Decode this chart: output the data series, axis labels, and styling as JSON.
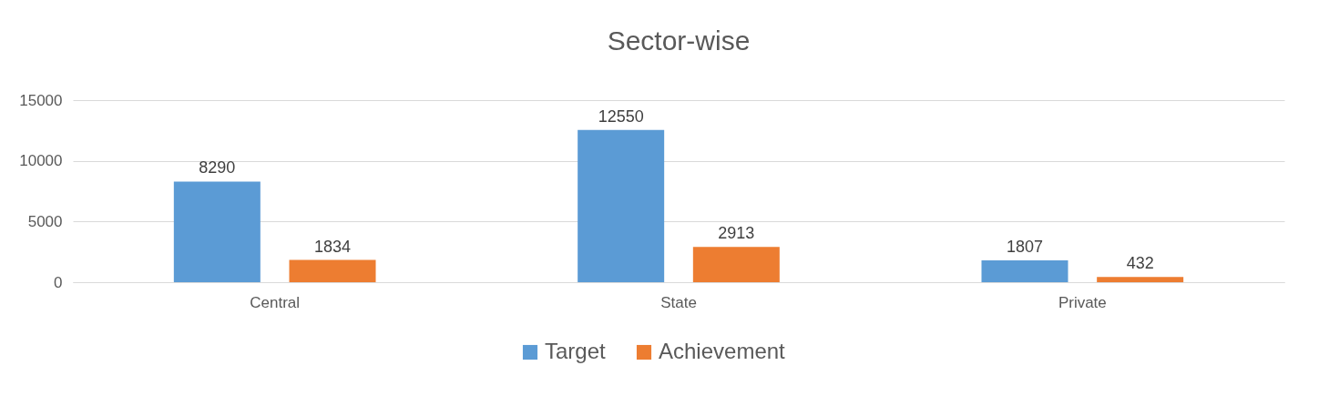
{
  "chart_data": {
    "type": "bar",
    "title": "Sector-wise",
    "categories": [
      "Central",
      "State",
      "Private"
    ],
    "series": [
      {
        "name": "Target",
        "color": "#5b9bd5",
        "values": [
          8290,
          12550,
          1807
        ]
      },
      {
        "name": "Achievement",
        "color": "#ed7d31",
        "values": [
          1834,
          2913,
          432
        ]
      }
    ],
    "ylim": [
      0,
      15000
    ],
    "yticks": [
      0,
      5000,
      10000,
      15000
    ],
    "grid": "y",
    "legend": "bottom",
    "data_labels": true
  }
}
